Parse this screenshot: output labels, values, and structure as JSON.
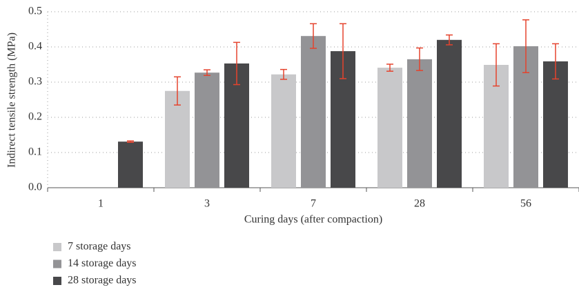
{
  "chart_data": {
    "type": "bar",
    "y_label": "Indirect tensile strength (MPa)",
    "x_label": "Curing days (after compaction)",
    "categories": [
      "1",
      "3",
      "7",
      "28",
      "56"
    ],
    "series": [
      {
        "name": "7 storage days",
        "color": "#c8c8ca",
        "values": [
          null,
          0.275,
          0.322,
          0.341,
          0.349
        ],
        "errors": [
          null,
          0.04,
          0.014,
          0.01,
          0.06
        ]
      },
      {
        "name": "14 storage days",
        "color": "#939396",
        "values": [
          null,
          0.327,
          0.431,
          0.365,
          0.402
        ],
        "errors": [
          null,
          0.008,
          0.035,
          0.032,
          0.075
        ]
      },
      {
        "name": "28 storage days",
        "color": "#48484a",
        "values": [
          0.131,
          0.353,
          0.388,
          0.42,
          0.359
        ],
        "errors": [
          0.002,
          0.06,
          0.078,
          0.014,
          0.05
        ]
      }
    ],
    "error_color": "#e5432d",
    "ylim": [
      0,
      0.5
    ],
    "yticks": [
      {
        "value": 0,
        "label": "0.0"
      },
      0.1,
      0.2,
      0.3,
      0.4,
      0.5
    ],
    "grid": true,
    "legend": "bottom-left"
  }
}
